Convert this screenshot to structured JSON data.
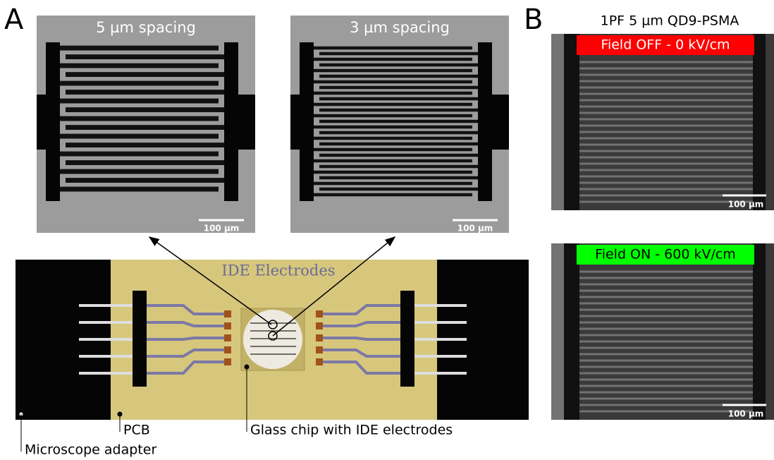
{
  "panels": [
    {
      "label": "A",
      "micrographs": [
        {
          "title": "5 µm spacing",
          "scale_bar": "100 µm"
        },
        {
          "title": "3 µm spacing",
          "scale_bar": "100 µm"
        }
      ],
      "device": {
        "title": "IDE Electrodes",
        "callouts": [
          "Microscope adapter",
          "PCB",
          "Glass chip with IDE electrodes"
        ]
      }
    },
    {
      "label": "B",
      "title": "1PF 5 µm QD9-PSMA",
      "images": [
        {
          "condition": "Field OFF - 0 kV/cm",
          "scale_bar": "100 µm"
        },
        {
          "condition": "Field ON - 600 kV/cm",
          "scale_bar": "100 µm"
        }
      ]
    }
  ]
}
